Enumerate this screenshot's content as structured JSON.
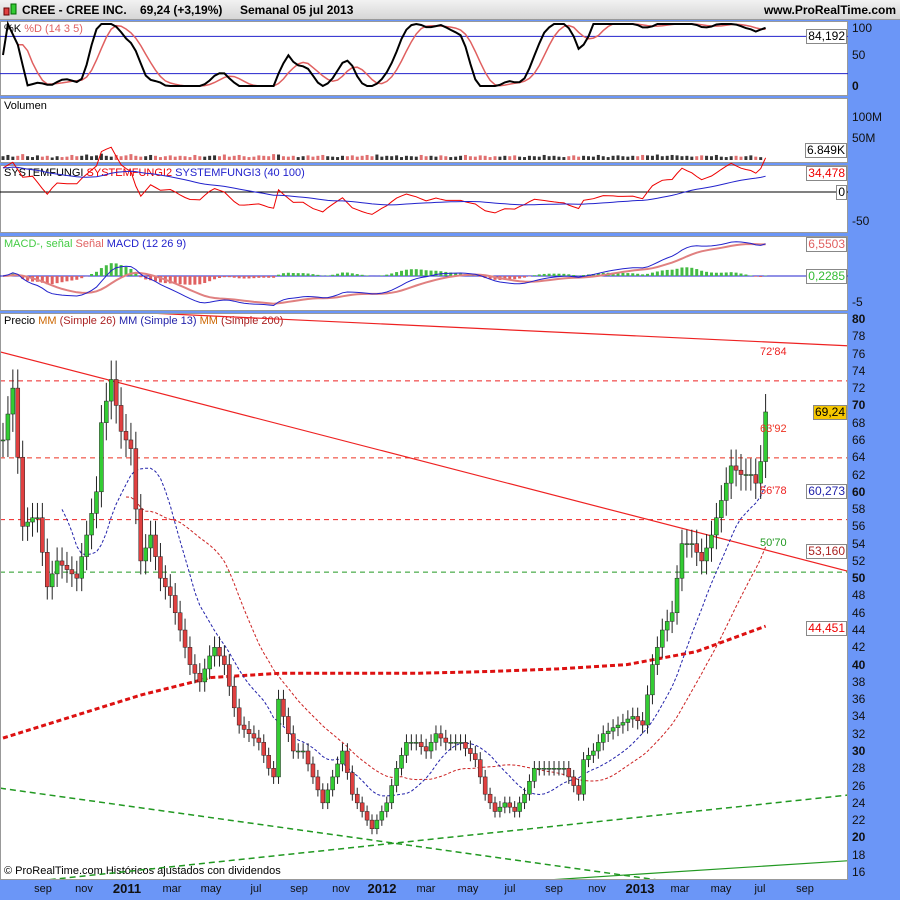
{
  "header": {
    "title": "CREE - CREE INC.",
    "price": "69,24 (+3,19%)",
    "period": "Semanal  05 jul 2013",
    "site": "www.ProRealTime.com"
  },
  "colors": {
    "up": "#33cc33",
    "down": "#e04040",
    "axis": "#6b96f7",
    "ma26": "#cc2222",
    "ma13": "#2222aa",
    "ma200": "#dd1111"
  },
  "stoch": {
    "legend_k": "%K",
    "legend_d": "%D (14 3 5)",
    "ticks": [
      "100",
      "50",
      "0"
    ],
    "last": "84,192"
  },
  "volume": {
    "legend": "Volumen",
    "ticks": [
      "100M",
      "50M"
    ],
    "last": "6.849K",
    "values_m": [
      9,
      12,
      8,
      10,
      14,
      9,
      7,
      11,
      8,
      10,
      6,
      9,
      7,
      8,
      12,
      9,
      10,
      13,
      9,
      11,
      15,
      10,
      8,
      12,
      9,
      11,
      14,
      10,
      8,
      9,
      12,
      10,
      7,
      9,
      11,
      8,
      10,
      9,
      7,
      12,
      9,
      8,
      10,
      11,
      9,
      13,
      8,
      10,
      12,
      9,
      7,
      8,
      11,
      10,
      9,
      14,
      13,
      9,
      8,
      10,
      7,
      9,
      11,
      8,
      10,
      12,
      9,
      8,
      7,
      10,
      9,
      11,
      8,
      10,
      12,
      9,
      13,
      8,
      10,
      9,
      11,
      7,
      10,
      9,
      8,
      12,
      9,
      10,
      8,
      11,
      9,
      7,
      8,
      10,
      12,
      9,
      8,
      11,
      10,
      7,
      9,
      8,
      10,
      9,
      11,
      8,
      7,
      10,
      9,
      8,
      12,
      9,
      10,
      8,
      7,
      9,
      11,
      8,
      10,
      9,
      8,
      12,
      9,
      7,
      10,
      11,
      9,
      8,
      10,
      9,
      12,
      11,
      10,
      13,
      9,
      10,
      12,
      11,
      9,
      10,
      8,
      9,
      11,
      10,
      9,
      12,
      8,
      7,
      9,
      10,
      8,
      9,
      11,
      8,
      6.8
    ]
  },
  "systemfungi": {
    "legend_1": "SYSTEMFUNGI",
    "legend_2": "SYSTEMFUNGI2",
    "legend_3": "SYSTEMFUNGI3 (40 100)",
    "ticks": [
      "0",
      "-50"
    ],
    "last_red": "34,478",
    "last_zero": "0"
  },
  "macd": {
    "legend_1": "MACD-, señal",
    "legend_2": "Señal",
    "legend_3": "MACD (12 26 9)",
    "ticks": [
      "-5"
    ],
    "last_macd": "6,5503",
    "last_hist": "0,2285"
  },
  "price_panel": {
    "legend_1": "Precio",
    "legend_2": "MM",
    "legend_3": "(Simple 26)",
    "legend_4": "MM (Simple 13)",
    "legend_5": "MM",
    "legend_6": "(Simple 200)",
    "ticks": [
      "80",
      "78",
      "76",
      "74",
      "72",
      "70",
      "68",
      "66",
      "64",
      "62",
      "60",
      "58",
      "56",
      "54",
      "52",
      "50",
      "48",
      "46",
      "44",
      "42",
      "40",
      "38",
      "36",
      "34",
      "32",
      "30",
      "28",
      "26",
      "24",
      "22",
      "20",
      "18",
      "16"
    ],
    "last_price": "69,24",
    "last_ma13": "60,273",
    "last_ma26": "53,160",
    "last_ma200": "44,451",
    "levels": [
      {
        "value": 72.84,
        "label": "72'84",
        "color": "#ee2222"
      },
      {
        "value": 63.92,
        "label": "63'92",
        "color": "#ee3322"
      },
      {
        "value": 56.78,
        "label": "56'78",
        "color": "#ee2222"
      },
      {
        "value": 50.7,
        "label": "50'70",
        "color": "#229922"
      }
    ],
    "footer": "© ProRealTime.com  Históricos ajustados con dividendos"
  },
  "x_axis": {
    "labels": [
      {
        "t": "sep",
        "x": 43
      },
      {
        "t": "nov",
        "x": 84
      },
      {
        "t": "2011",
        "x": 127,
        "y": true
      },
      {
        "t": "mar",
        "x": 172
      },
      {
        "t": "may",
        "x": 211
      },
      {
        "t": "jul",
        "x": 256
      },
      {
        "t": "sep",
        "x": 299
      },
      {
        "t": "nov",
        "x": 341
      },
      {
        "t": "2012",
        "x": 382,
        "y": true
      },
      {
        "t": "mar",
        "x": 426
      },
      {
        "t": "may",
        "x": 468
      },
      {
        "t": "jul",
        "x": 510
      },
      {
        "t": "sep",
        "x": 554
      },
      {
        "t": "nov",
        "x": 597
      },
      {
        "t": "2013",
        "x": 640,
        "y": true
      },
      {
        "t": "mar",
        "x": 680
      },
      {
        "t": "may",
        "x": 721
      },
      {
        "t": "jul",
        "x": 760
      },
      {
        "t": "sep",
        "x": 805
      }
    ]
  },
  "chart_data": {
    "type": "candlestick",
    "period": "weekly",
    "yscale": "linear",
    "ylim": [
      16,
      80
    ],
    "close": [
      66,
      69,
      72,
      64,
      56,
      56.5,
      57,
      57,
      53,
      49,
      50.5,
      52,
      51.5,
      51,
      50.5,
      50,
      52.5,
      55,
      57.5,
      60,
      68,
      70.5,
      73,
      70,
      67,
      66,
      65,
      58,
      52,
      53.5,
      55,
      52.5,
      50,
      49,
      48,
      46,
      44,
      42,
      40,
      39,
      38,
      39.5,
      41,
      42,
      41,
      40,
      37.5,
      35,
      33,
      32.5,
      32,
      31.5,
      31,
      29.5,
      28,
      27,
      36,
      34,
      32,
      30,
      30,
      30,
      28.5,
      27,
      25.5,
      24,
      25.5,
      27,
      28.5,
      30,
      27.5,
      25,
      24,
      23,
      22,
      21,
      22,
      23,
      24,
      26,
      28,
      29.5,
      31,
      31,
      31,
      30.5,
      30,
      31,
      32,
      31.5,
      31,
      31,
      31,
      31,
      30.3,
      29.7,
      29,
      27,
      25,
      24,
      23,
      23.5,
      24,
      23.5,
      23,
      24,
      25,
      26.5,
      28,
      28,
      28,
      28,
      28,
      28,
      28,
      27,
      26,
      25,
      29,
      29.5,
      30,
      31,
      32,
      32.3,
      32.7,
      33,
      33.3,
      33.7,
      34,
      33.5,
      33,
      36.5,
      40,
      42,
      44,
      45,
      46,
      50,
      54,
      54,
      54,
      53,
      52,
      53.5,
      55,
      57,
      59,
      61,
      63,
      62.5,
      62,
      62,
      62,
      61,
      63.5,
      69.24
    ],
    "ma200_samples": [
      31.5,
      34,
      36.5,
      38.5,
      39,
      39,
      39,
      39.2,
      39.5,
      40,
      41.5,
      44.45
    ],
    "trendlines": [
      {
        "color": "#ee2222",
        "style": "solid",
        "from": 76.2,
        "to": 50.8
      },
      {
        "color": "#ee2222",
        "style": "solid",
        "from": 81.5,
        "to": 76.9
      },
      {
        "color": "#229922",
        "style": "dashed",
        "from": 14.5,
        "to": 24.9
      },
      {
        "color": "#229922",
        "style": "dashed",
        "from": 25.7,
        "to": 12
      },
      {
        "color": "#229922",
        "style": "solid",
        "from": 11,
        "to": 17.3
      }
    ]
  }
}
